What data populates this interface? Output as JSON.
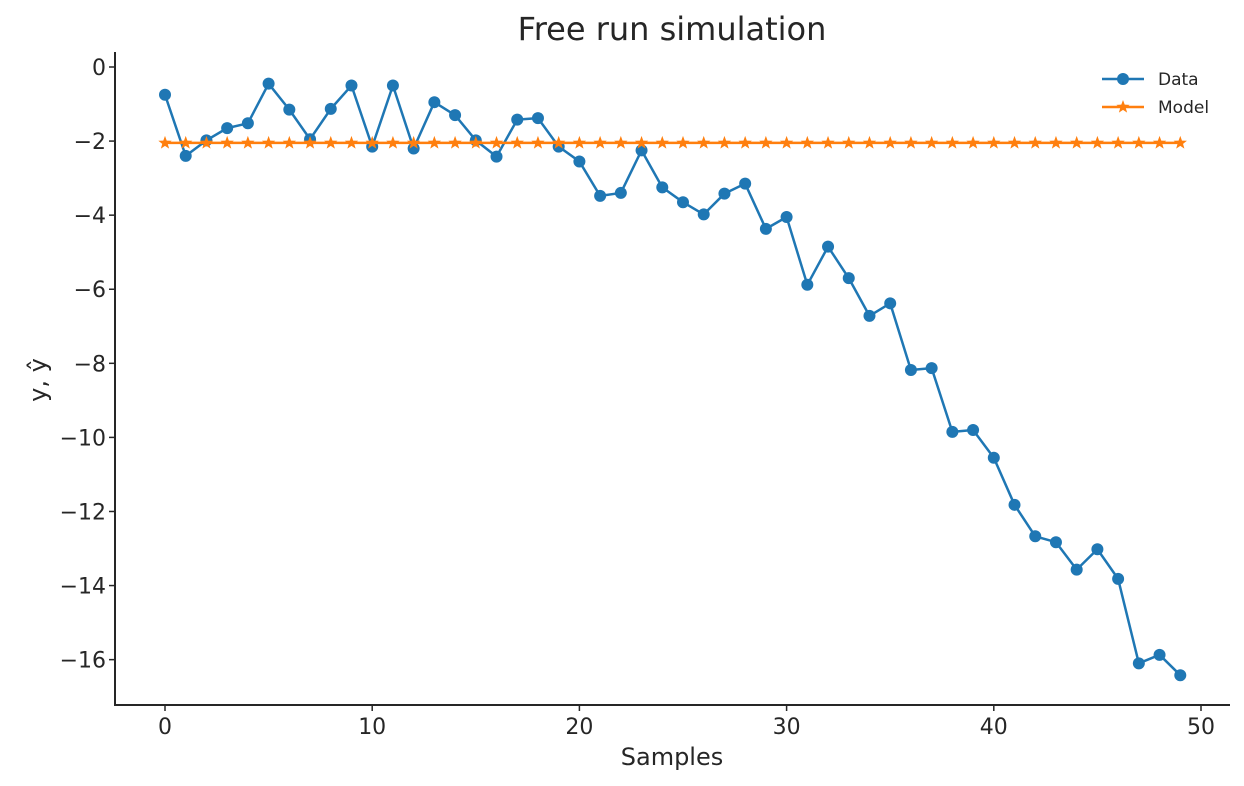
{
  "chart_data": {
    "type": "line",
    "title": "Free run simulation",
    "xlabel": "Samples",
    "ylabel": "y, ŷ",
    "xlim": [
      -2.5,
      51.5
    ],
    "ylim": [
      -17.2,
      0.4
    ],
    "xticks": [
      0,
      10,
      20,
      30,
      40,
      50
    ],
    "yticks": [
      0,
      -2,
      -4,
      -6,
      -8,
      -10,
      -12,
      -14,
      -16
    ],
    "ytick_labels": [
      "0",
      "−2",
      "−4",
      "−6",
      "−8",
      "−10",
      "−12",
      "−14",
      "−16"
    ],
    "xtick_labels": [
      "0",
      "10",
      "20",
      "30",
      "40",
      "50"
    ],
    "grid": false,
    "legend_position": "top-right",
    "series": [
      {
        "name": "Data",
        "color": "#1f77b4",
        "marker": "circle",
        "x": [
          0,
          1,
          2,
          3,
          4,
          5,
          6,
          7,
          8,
          9,
          10,
          11,
          12,
          13,
          14,
          15,
          16,
          17,
          18,
          19,
          20,
          21,
          22,
          23,
          24,
          25,
          26,
          27,
          28,
          29,
          30,
          31,
          32,
          33,
          34,
          35,
          36,
          37,
          38,
          39,
          40,
          41,
          42,
          43,
          44,
          45,
          46,
          47,
          48,
          49
        ],
        "values": [
          -0.75,
          -2.4,
          -1.98,
          -1.65,
          -1.52,
          -0.45,
          -1.15,
          -1.95,
          -1.13,
          -0.5,
          -2.15,
          -0.5,
          -2.2,
          -0.95,
          -1.3,
          -1.98,
          -2.42,
          -1.42,
          -1.38,
          -2.15,
          -2.55,
          -3.48,
          -3.4,
          -2.25,
          -3.25,
          -3.65,
          -3.98,
          -3.42,
          -3.15,
          -4.37,
          -4.05,
          -5.88,
          -4.85,
          -5.7,
          -6.72,
          -6.38,
          -8.18,
          -8.13,
          -9.85,
          -9.8,
          -10.55,
          -11.82,
          -12.67,
          -12.83,
          -13.57,
          -13.02,
          -13.82,
          -16.1,
          -15.87,
          -16.42
        ]
      },
      {
        "name": "Model",
        "color": "#ff7f0e",
        "marker": "star",
        "x": [
          0,
          1,
          2,
          3,
          4,
          5,
          6,
          7,
          8,
          9,
          10,
          11,
          12,
          13,
          14,
          15,
          16,
          17,
          18,
          19,
          20,
          21,
          22,
          23,
          24,
          25,
          26,
          27,
          28,
          29,
          30,
          31,
          32,
          33,
          34,
          35,
          36,
          37,
          38,
          39,
          40,
          41,
          42,
          43,
          44,
          45,
          46,
          47,
          48,
          49
        ],
        "values": [
          -2.05,
          -2.05,
          -2.05,
          -2.05,
          -2.05,
          -2.05,
          -2.05,
          -2.05,
          -2.05,
          -2.05,
          -2.05,
          -2.05,
          -2.05,
          -2.05,
          -2.05,
          -2.05,
          -2.05,
          -2.05,
          -2.05,
          -2.05,
          -2.05,
          -2.05,
          -2.05,
          -2.05,
          -2.05,
          -2.05,
          -2.05,
          -2.05,
          -2.05,
          -2.05,
          -2.05,
          -2.05,
          -2.05,
          -2.05,
          -2.05,
          -2.05,
          -2.05,
          -2.05,
          -2.05,
          -2.05,
          -2.05,
          -2.05,
          -2.05,
          -2.05,
          -2.05,
          -2.05,
          -2.05,
          -2.05,
          -2.05,
          -2.05
        ]
      }
    ]
  }
}
